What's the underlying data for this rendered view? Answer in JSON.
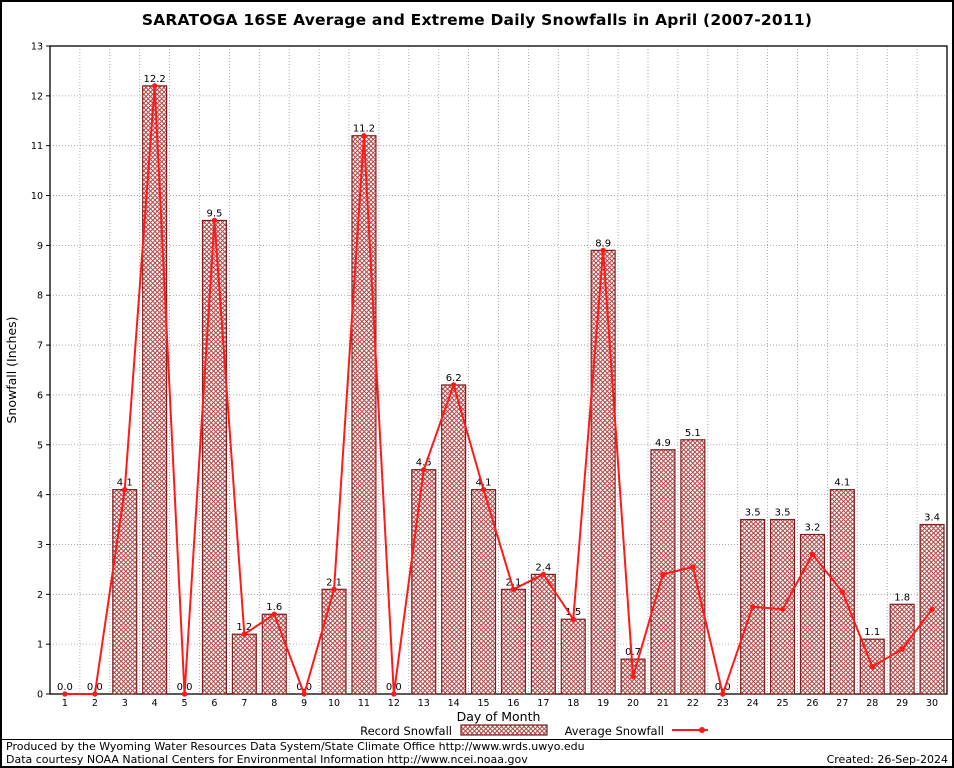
{
  "chart_data": {
    "type": "bar+line",
    "title": "SARATOGA 16SE Average and Extreme Daily Snowfalls in April (2007-2011)",
    "xlabel": "Day of Month",
    "ylabel": "Snowfall (Inches)",
    "ylim": [
      0,
      13
    ],
    "y_ticks": [
      0,
      1,
      2,
      3,
      4,
      5,
      6,
      7,
      8,
      9,
      10,
      11,
      12,
      13
    ],
    "categories": [
      1,
      2,
      3,
      4,
      5,
      6,
      7,
      8,
      9,
      10,
      11,
      12,
      13,
      14,
      15,
      16,
      17,
      18,
      19,
      20,
      21,
      22,
      23,
      24,
      25,
      26,
      27,
      28,
      29,
      30
    ],
    "grid": true,
    "legend_position": "bottom",
    "series": [
      {
        "name": "Record Snowfall",
        "type": "bar",
        "values": [
          0,
          0,
          4.1,
          12.2,
          0,
          9.5,
          1.2,
          1.6,
          0,
          2.1,
          11.2,
          0,
          4.5,
          6.2,
          4.1,
          2.1,
          2.4,
          1.5,
          8.9,
          0.7,
          4.9,
          5.1,
          0,
          3.5,
          3.5,
          3.2,
          4.1,
          1.1,
          1.8,
          3.4
        ]
      },
      {
        "name": "Average Snowfall",
        "type": "line",
        "values": [
          0,
          0,
          4.1,
          12.2,
          0,
          9.5,
          1.2,
          1.6,
          0,
          2.1,
          11.2,
          0,
          4.5,
          6.2,
          4.1,
          2.1,
          2.4,
          1.5,
          8.9,
          0.35,
          2.4,
          2.55,
          0,
          1.75,
          1.7,
          2.8,
          2.05,
          0.55,
          0.9,
          1.7
        ]
      }
    ],
    "bar_labels": [
      "0.0",
      "0.0",
      "4.1",
      "12.2",
      "0.0",
      "9.5",
      "1.2",
      "1.6",
      "0.0",
      "2.1",
      "11.2",
      "0.0",
      "4.5",
      "6.2",
      "4.1",
      "2.1",
      "2.4",
      "1.5",
      "8.9",
      "0.7",
      "4.9",
      "5.1",
      "0.0",
      "3.5",
      "3.5",
      "3.2",
      "4.1",
      "1.1",
      "1.8",
      "3.4"
    ]
  },
  "colors": {
    "bar_outline": "#7f1f1f",
    "bar_hatch": "#b34747",
    "line": "#ff1a1a",
    "grid": "#999999",
    "axis": "#000000"
  },
  "footer": {
    "produced_by": "Produced by the Wyoming Water Resources Data System/State Climate Office http://www.wrds.uwyo.edu",
    "data_courtesy": "Data courtesy NOAA National Centers for Environmental Information http://www.ncei.noaa.gov",
    "created": "Created: 26-Sep-2024"
  }
}
